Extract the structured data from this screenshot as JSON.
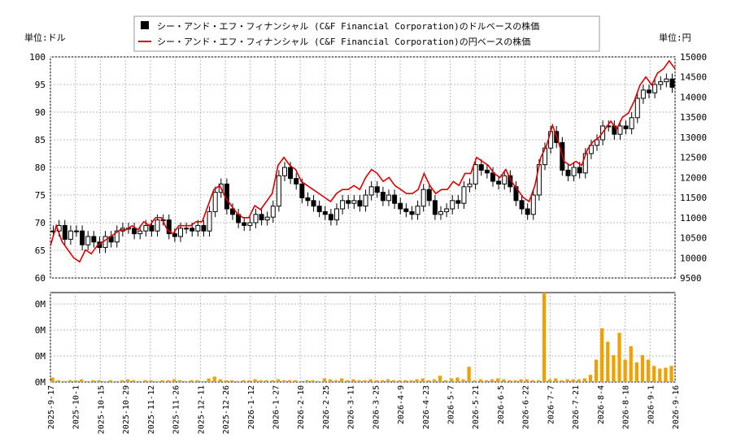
{
  "chart_data": {
    "type": "candlestick",
    "legend": {
      "items": [
        {
          "label": "シー・アンド・エフ・フィナンシャル (C&F Financial Corporation)のドルベースの株価",
          "color": "#000000",
          "marker": "square"
        },
        {
          "label": "シー・アンド・エフ・フィナンシャル (C&F Financial Corporation)の円ベースの株価",
          "color": "#dd0000",
          "marker": "line"
        }
      ]
    },
    "left_unit": "単位:ドル",
    "right_unit": "単位:円",
    "y_left": {
      "min": 60,
      "max": 100,
      "ticks": [
        60,
        65,
        70,
        75,
        80,
        85,
        90,
        95,
        100
      ]
    },
    "y_right": {
      "min": 9500,
      "max": 15000,
      "ticks": [
        9500,
        10000,
        10500,
        11000,
        11500,
        12000,
        12500,
        13000,
        13500,
        14000,
        14500,
        15000
      ]
    },
    "volume_axis": {
      "tick_labels": [
        "0M",
        "0M",
        "0M",
        "0M"
      ]
    },
    "x_ticks": [
      "2025-9-17",
      "2025-10-1",
      "2025-10-15",
      "2025-10-29",
      "2025-11-12",
      "2025-11-26",
      "2025-12-11",
      "2025-12-26",
      "2026-1-12",
      "2026-1-27",
      "2026-2-10",
      "2026-2-25",
      "2026-3-11",
      "2026-3-25",
      "2026-4-9",
      "2026-4-23",
      "2026-5-7",
      "2026-5-21",
      "2026-6-5",
      "2026-6-22",
      "2026-7-7",
      "2026-7-21",
      "2026-8-4",
      "2026-8-18",
      "2026-9-1",
      "2026-9-16"
    ],
    "dollar_close": [
      68.5,
      69.5,
      67.0,
      68.5,
      68.5,
      66.0,
      67.5,
      66.5,
      65.5,
      67.5,
      66.5,
      68.5,
      69.0,
      69.0,
      68.0,
      68.5,
      69.5,
      68.5,
      70.5,
      70.5,
      68.0,
      67.5,
      69.0,
      69.0,
      68.5,
      69.5,
      68.5,
      72.0,
      75.5,
      77.0,
      72.5,
      71.5,
      70.0,
      69.5,
      70.0,
      71.5,
      70.5,
      71.0,
      73.0,
      78.5,
      80.0,
      78.0,
      77.0,
      74.5,
      74.0,
      73.0,
      72.0,
      71.5,
      70.5,
      72.5,
      74.0,
      73.5,
      74.0,
      73.0,
      75.0,
      76.5,
      75.5,
      74.0,
      75.0,
      73.5,
      72.5,
      72.0,
      71.5,
      73.0,
      76.0,
      74.0,
      71.5,
      72.0,
      72.5,
      74.0,
      73.5,
      76.5,
      77.0,
      80.5,
      79.5,
      79.0,
      77.5,
      77.0,
      78.5,
      76.5,
      74.0,
      72.5,
      71.5,
      75.0,
      80.5,
      83.5,
      86.5,
      84.5,
      79.5,
      78.5,
      80.0,
      79.0,
      82.5,
      84.0,
      85.0,
      87.5,
      87.5,
      86.0,
      87.5,
      87.0,
      89.0,
      92.5,
      94.0,
      93.5,
      95.0,
      95.5,
      96.0,
      94.5
    ],
    "yen_close": [
      10300,
      10800,
      10400,
      10200,
      10000,
      9900,
      10200,
      10100,
      10300,
      10400,
      10500,
      10600,
      10700,
      10700,
      10800,
      10700,
      10900,
      10800,
      11000,
      11000,
      10700,
      10600,
      10800,
      10800,
      10800,
      10900,
      10900,
      11300,
      11700,
      11800,
      11500,
      11300,
      11100,
      11000,
      11000,
      11300,
      11200,
      11400,
      11600,
      12300,
      12500,
      12300,
      12200,
      11900,
      11800,
      11700,
      11600,
      11500,
      11400,
      11600,
      11700,
      11700,
      11800,
      11700,
      12000,
      12200,
      12100,
      11900,
      12000,
      11800,
      11700,
      11600,
      11600,
      11700,
      12100,
      11800,
      11600,
      11700,
      11700,
      11900,
      11800,
      12100,
      12100,
      12500,
      12400,
      12300,
      12100,
      12000,
      12200,
      11900,
      11700,
      11500,
      11400,
      11800,
      12500,
      12800,
      13300,
      12900,
      12400,
      12300,
      12400,
      12300,
      12700,
      12900,
      13000,
      13200,
      13400,
      13200,
      13500,
      13600,
      13900,
      14300,
      14500,
      14300,
      14600,
      14700,
      14900,
      14700
    ],
    "volume": [
      0.05,
      0.02,
      0.01,
      0.02,
      0.02,
      0.03,
      0.01,
      0.02,
      0.02,
      0.01,
      0.02,
      0.01,
      0.02,
      0.03,
      0.02,
      0.01,
      0.02,
      0.02,
      0.01,
      0.02,
      0.02,
      0.03,
      0.02,
      0.01,
      0.02,
      0.02,
      0.01,
      0.04,
      0.06,
      0.03,
      0.02,
      0.02,
      0.01,
      0.02,
      0.02,
      0.03,
      0.02,
      0.02,
      0.02,
      0.03,
      0.02,
      0.02,
      0.02,
      0.01,
      0.02,
      0.02,
      0.01,
      0.04,
      0.03,
      0.02,
      0.04,
      0.02,
      0.03,
      0.02,
      0.02,
      0.03,
      0.02,
      0.02,
      0.03,
      0.02,
      0.02,
      0.02,
      0.02,
      0.03,
      0.04,
      0.02,
      0.03,
      0.07,
      0.02,
      0.04,
      0.05,
      0.03,
      0.17,
      0.02,
      0.03,
      0.02,
      0.03,
      0.04,
      0.03,
      0.02,
      0.02,
      0.03,
      0.03,
      0.02,
      0.02,
      1.0,
      0.03,
      0.04,
      0.02,
      0.03,
      0.03,
      0.03,
      0.04,
      0.08,
      0.25,
      0.6,
      0.45,
      0.3,
      0.55,
      0.25,
      0.4,
      0.22,
      0.3,
      0.25,
      0.18,
      0.15,
      0.16,
      0.18
    ]
  }
}
